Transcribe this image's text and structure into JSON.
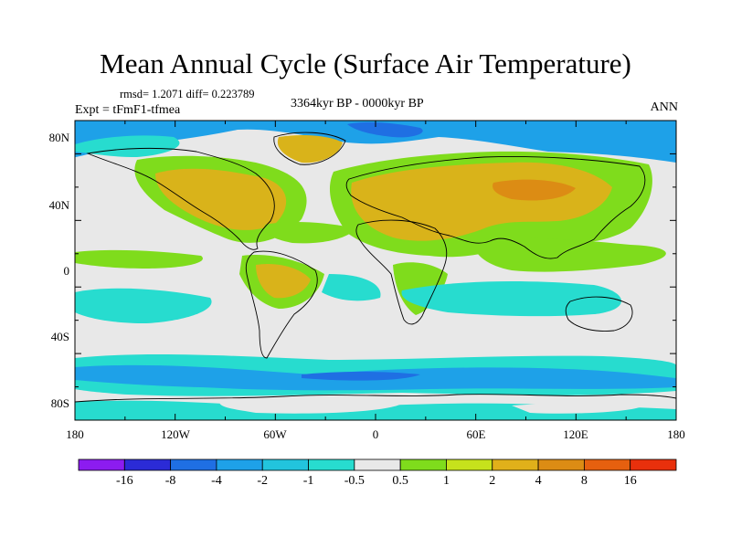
{
  "title": "Mean Annual Cycle (Surface Air Temperature)",
  "stats_line": "rmsd= 1.2071 diff= 0.223789",
  "experiment": "Expt = tFmF1-tfmea",
  "period": "3364kyr BP - 0000kyr BP",
  "season": "ANN",
  "lat_labels": [
    "80N",
    "40N",
    "0",
    "40S",
    "80S"
  ],
  "lon_labels": [
    "180",
    "120W",
    "60W",
    "0",
    "60E",
    "120E",
    "180"
  ],
  "colorbar": {
    "labels": [
      "-16",
      "-8",
      "-4",
      "-2",
      "-1",
      "-0.5",
      "0.5",
      "1",
      "2",
      "4",
      "8",
      "16"
    ],
    "colors": [
      "#8c1cf0",
      "#2b2bd6",
      "#1f6fe3",
      "#1ea1e8",
      "#22c4dd",
      "#27dccf",
      "#e8e8e8",
      "#7fdc1c",
      "#c6e21c",
      "#e0b01a",
      "#dc8c14",
      "#e6600f",
      "#e8300c"
    ]
  },
  "map_colors": {
    "neutral": "#e8e8e8",
    "warm_light": "#7fdc1c",
    "warm_mid": "#d9b31a",
    "warm_strong": "#dc8c14",
    "cool_light": "#27dccf",
    "cool_mid": "#22c4dd",
    "cool_strong": "#1ea1e8",
    "cool_deep": "#1f6fe3",
    "coast": "#000000"
  }
}
